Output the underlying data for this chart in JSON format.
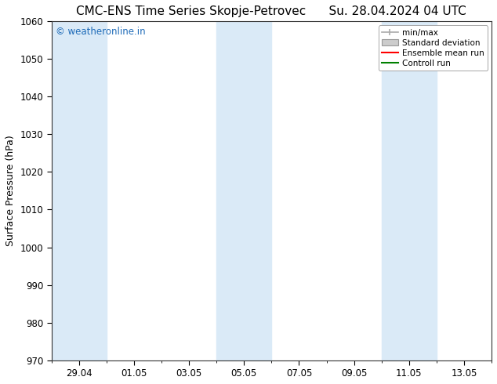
{
  "title_left": "CMC-ENS Time Series Skopje-Petrovec",
  "title_right": "Su. 28.04.2024 04 UTC",
  "ylabel": "Surface Pressure (hPa)",
  "ylim": [
    970,
    1060
  ],
  "yticks": [
    970,
    980,
    990,
    1000,
    1010,
    1020,
    1030,
    1040,
    1050,
    1060
  ],
  "x_tick_labels": [
    "29.04",
    "01.05",
    "03.05",
    "05.05",
    "07.05",
    "09.05",
    "11.05",
    "13.05"
  ],
  "x_tick_positions": [
    1,
    3,
    5,
    7,
    9,
    11,
    13,
    15
  ],
  "xlim": [
    0,
    16
  ],
  "shaded_bands": [
    {
      "x_start": 0.0,
      "x_end": 2.0
    },
    {
      "x_start": 6.0,
      "x_end": 8.0
    },
    {
      "x_start": 12.0,
      "x_end": 14.0
    }
  ],
  "band_color": "#daeaf7",
  "watermark_text": "© weatheronline.in",
  "watermark_color": "#1e6bb8",
  "legend_labels": [
    "min/max",
    "Standard deviation",
    "Ensemble mean run",
    "Controll run"
  ],
  "legend_colors": [
    "#aaaaaa",
    "#cccccc",
    "#ff0000",
    "#008000"
  ],
  "background_color": "#ffffff",
  "title_fontsize": 11,
  "tick_fontsize": 8.5,
  "ylabel_fontsize": 9
}
